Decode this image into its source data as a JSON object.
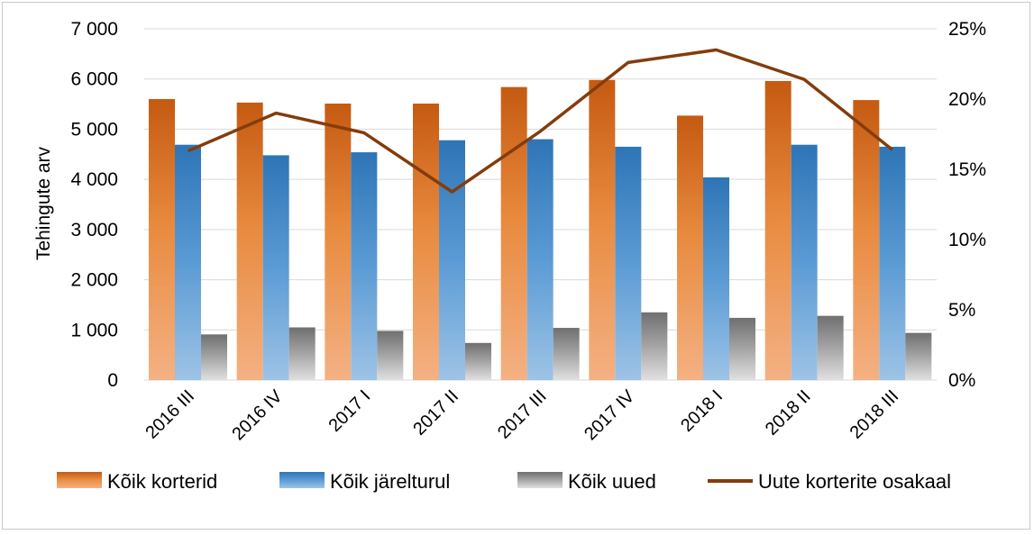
{
  "chart_data": {
    "type": "bar",
    "title": "",
    "xlabel": "",
    "ylabel": "Tehingute arv",
    "categories": [
      "2016 III",
      "2016 IV",
      "2017 I",
      "2017 II",
      "2017 III",
      "2017 IV",
      "2018 I",
      "2018 II",
      "2018 III"
    ],
    "ylim": [
      0,
      7000
    ],
    "y_ticks": [
      "0",
      "1 000",
      "2 000",
      "3 000",
      "4 000",
      "5 000",
      "6 000",
      "7 000"
    ],
    "y2lim": [
      0,
      0.25
    ],
    "y2_ticks": [
      "0%",
      "5%",
      "10%",
      "15%",
      "20%",
      "25%"
    ],
    "grid": true,
    "legend_position": "bottom",
    "series": [
      {
        "name": "Kõik korterid",
        "type": "bar",
        "color": "#c55a11",
        "values": [
          5600,
          5530,
          5510,
          5510,
          5840,
          5980,
          5270,
          5960,
          5580
        ]
      },
      {
        "name": "Kõik järelturul",
        "type": "bar",
        "color": "#2e75b6",
        "values": [
          4690,
          4480,
          4540,
          4780,
          4800,
          4650,
          4040,
          4690,
          4650
        ]
      },
      {
        "name": "Kõik uued",
        "type": "bar",
        "color": "#7f7f7f",
        "values": [
          910,
          1050,
          980,
          740,
          1040,
          1350,
          1240,
          1280,
          940
        ]
      },
      {
        "name": "Uute korterite osakaal",
        "type": "line",
        "axis": "secondary",
        "color": "#843c0c",
        "values": [
          0.163,
          0.19,
          0.176,
          0.134,
          0.177,
          0.226,
          0.235,
          0.214,
          0.164
        ]
      }
    ]
  }
}
